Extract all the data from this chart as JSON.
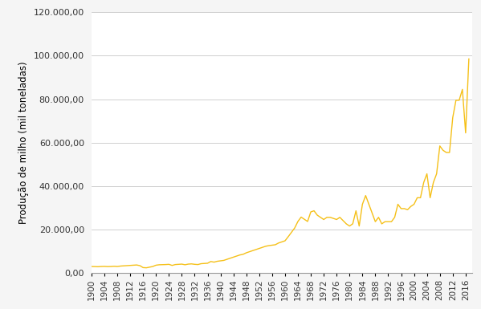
{
  "ylabel": "Produção de milho (mil toneladas)",
  "line_color": "#F5C018",
  "background_color": "#f5f5f5",
  "plot_bg_color": "#ffffff",
  "ylim": [
    0,
    120000
  ],
  "yticks": [
    0,
    20000,
    40000,
    60000,
    80000,
    100000,
    120000
  ],
  "xlim_start": 1900,
  "xlim_end": 2018,
  "years": [
    1900,
    1901,
    1902,
    1903,
    1904,
    1905,
    1906,
    1907,
    1908,
    1909,
    1910,
    1911,
    1912,
    1913,
    1914,
    1915,
    1916,
    1917,
    1918,
    1919,
    1920,
    1921,
    1922,
    1923,
    1924,
    1925,
    1926,
    1927,
    1928,
    1929,
    1930,
    1931,
    1932,
    1933,
    1934,
    1935,
    1936,
    1937,
    1938,
    1939,
    1940,
    1941,
    1942,
    1943,
    1944,
    1945,
    1946,
    1947,
    1948,
    1949,
    1950,
    1951,
    1952,
    1953,
    1954,
    1955,
    1956,
    1957,
    1958,
    1959,
    1960,
    1961,
    1962,
    1963,
    1964,
    1965,
    1966,
    1967,
    1968,
    1969,
    1970,
    1971,
    1972,
    1973,
    1974,
    1975,
    1976,
    1977,
    1978,
    1979,
    1980,
    1981,
    1982,
    1983,
    1984,
    1985,
    1986,
    1987,
    1988,
    1989,
    1990,
    1991,
    1992,
    1993,
    1994,
    1995,
    1996,
    1997,
    1998,
    1999,
    2000,
    2001,
    2002,
    2003,
    2004,
    2005,
    2006,
    2007,
    2008,
    2009,
    2010,
    2011,
    2012,
    2013,
    2014,
    2015,
    2016,
    2017
  ],
  "values": [
    3100,
    3050,
    3000,
    3100,
    3150,
    3050,
    3100,
    3200,
    3100,
    3300,
    3400,
    3500,
    3600,
    3700,
    3800,
    3500,
    2600,
    2500,
    2800,
    3100,
    3700,
    3900,
    3950,
    4000,
    4100,
    3600,
    4000,
    4100,
    4200,
    3900,
    4200,
    4300,
    4100,
    4000,
    4400,
    4500,
    4600,
    5400,
    5100,
    5500,
    5700,
    5900,
    6400,
    6900,
    7400,
    7900,
    8400,
    8700,
    9400,
    9900,
    10400,
    10900,
    11400,
    11900,
    12400,
    12700,
    12900,
    13100,
    13900,
    14400,
    14900,
    16800,
    18800,
    20800,
    23800,
    25800,
    24800,
    23800,
    28200,
    28700,
    26700,
    25700,
    24700,
    25700,
    25700,
    25200,
    24700,
    25700,
    24200,
    22700,
    21700,
    22700,
    28700,
    21700,
    31700,
    35700,
    31700,
    27700,
    23700,
    25700,
    22700,
    23700,
    23700,
    23700,
    25700,
    31700,
    29700,
    29700,
    29200,
    30700,
    31700,
    34700,
    34700,
    41700,
    45700,
    34700,
    41700,
    45700,
    58500,
    56500,
    55500,
    55500,
    71500,
    79500,
    79500,
    84500,
    64500,
    98500
  ]
}
